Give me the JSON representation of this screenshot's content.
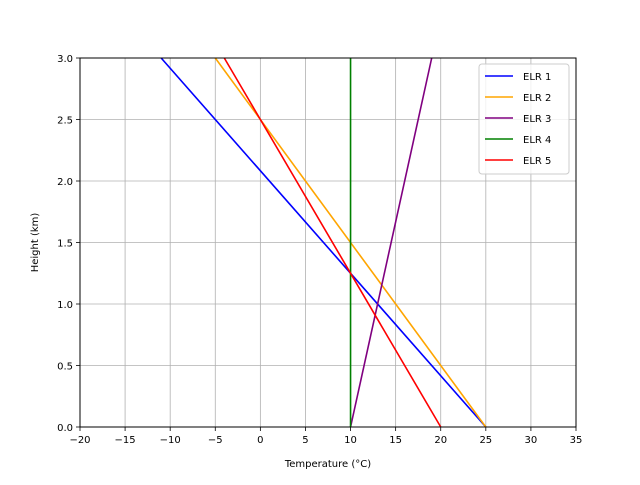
{
  "chart_data": {
    "type": "line",
    "title": "",
    "xlabel": "Temperature (°C)",
    "ylabel": "Height (km)",
    "xlim": [
      -20,
      35
    ],
    "ylim": [
      0.0,
      3.0
    ],
    "xticks": [
      -20,
      -15,
      -10,
      -5,
      0,
      5,
      10,
      15,
      20,
      25,
      30,
      35
    ],
    "xtick_labels": [
      "−20",
      "−15",
      "−10",
      "−5",
      "0",
      "5",
      "10",
      "15",
      "20",
      "25",
      "30",
      "35"
    ],
    "yticks": [
      0.0,
      0.5,
      1.0,
      1.5,
      2.0,
      2.5,
      3.0
    ],
    "ytick_labels": [
      "0.0",
      "0.5",
      "1.0",
      "1.5",
      "2.0",
      "2.5",
      "3.0"
    ],
    "grid": true,
    "legend_position": "top-right",
    "series": [
      {
        "name": "ELR 1",
        "color": "#0000ff",
        "x": [
          25,
          -11
        ],
        "y": [
          0.0,
          3.0
        ]
      },
      {
        "name": "ELR 2",
        "color": "#ffa500",
        "x": [
          25,
          -5
        ],
        "y": [
          0.0,
          3.0
        ]
      },
      {
        "name": "ELR 3",
        "color": "#800080",
        "x": [
          10,
          19
        ],
        "y": [
          0.0,
          3.0
        ]
      },
      {
        "name": "ELR 4",
        "color": "#008000",
        "x": [
          10,
          10
        ],
        "y": [
          0.0,
          3.0
        ]
      },
      {
        "name": "ELR 5",
        "color": "#ff0000",
        "x": [
          20,
          -4
        ],
        "y": [
          0.0,
          3.0
        ]
      }
    ]
  }
}
